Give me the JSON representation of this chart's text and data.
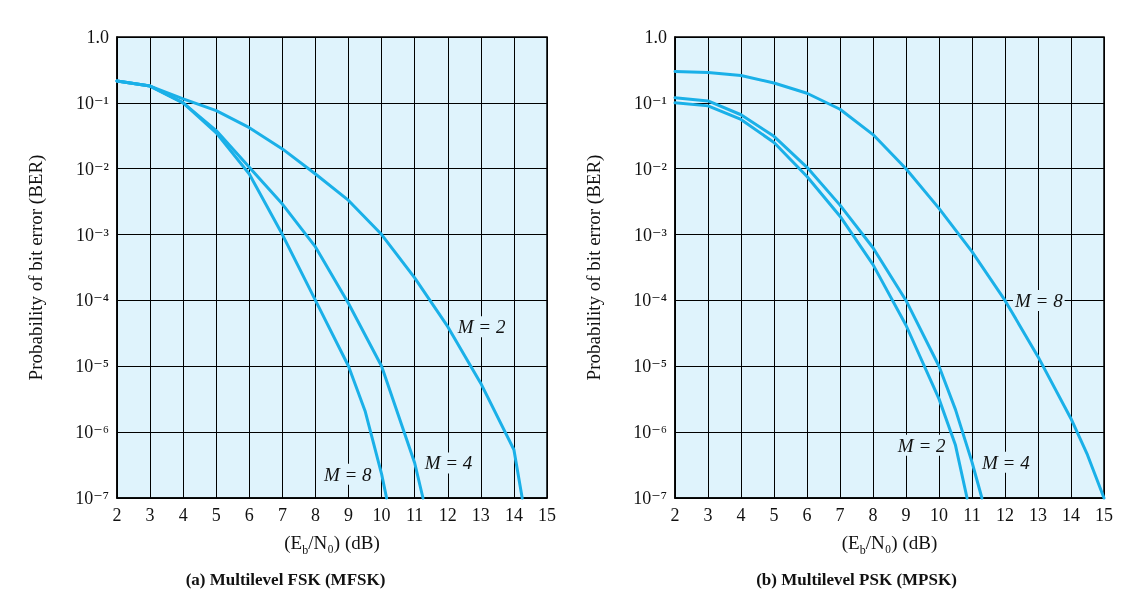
{
  "chart_data": [
    {
      "type": "line",
      "title": "(a) Multilevel FSK (MFSK)",
      "xlabel": "(E$_{b}$/N₀) (dB)",
      "ylabel": "Probability of bit error (BER)",
      "log": "y",
      "grid": true,
      "line_style": "solid",
      "xlim": [
        2,
        15
      ],
      "xticks": [
        2,
        3,
        4,
        5,
        6,
        7,
        8,
        9,
        10,
        11,
        12,
        13,
        14,
        15
      ],
      "ylim": [
        1e-07,
        1.0
      ],
      "yticks": [
        {
          "value": 1e-07,
          "label": "10⁻⁷"
        },
        {
          "value": 1e-06,
          "label": "10⁻⁶"
        },
        {
          "value": 1e-05,
          "label": "10⁻⁵"
        },
        {
          "value": 0.0001,
          "label": "10⁻⁴"
        },
        {
          "value": 0.001,
          "label": "10⁻³"
        },
        {
          "value": 0.01,
          "label": "10⁻²"
        },
        {
          "value": 0.1,
          "label": "10⁻¹"
        },
        {
          "value": 1.0,
          "label": "1.0"
        }
      ],
      "series": [
        {
          "color": "#1ab0e8",
          "x": [
            2,
            3,
            4,
            5,
            6,
            7,
            8,
            9,
            10,
            11,
            12,
            13,
            14,
            14.25
          ],
          "values": [
            0.215,
            0.18,
            0.115,
            0.076,
            0.042,
            0.02,
            0.0083,
            0.0033,
            0.001,
            0.00022,
            4e-05,
            5.5e-06,
            5.4e-07,
            1e-07
          ]
        },
        {
          "color": "#1ab0e8",
          "x": [
            2,
            3,
            4,
            5,
            6,
            7,
            8,
            9,
            10,
            11,
            11.25
          ],
          "values": [
            0.215,
            0.18,
            0.1,
            0.038,
            0.0105,
            0.0029,
            0.00065,
            9e-05,
            1e-05,
            3.4e-07,
            1e-07
          ]
        },
        {
          "color": "#1ab0e8",
          "x": [
            2,
            3,
            4,
            5,
            6,
            7,
            8,
            9,
            9.5,
            10,
            10.15
          ],
          "values": [
            0.215,
            0.18,
            0.1,
            0.035,
            0.0083,
            0.001,
            0.0001,
            1e-05,
            2.1e-06,
            2.3e-07,
            1e-07
          ]
        }
      ],
      "annotations": [
        {
          "text": "M = 2",
          "x": 12,
          "y": 4e-05
        },
        {
          "text": "M = 4",
          "x": 11,
          "y": 3.4e-07
        },
        {
          "text": "M = 8",
          "x": 10,
          "y": 2.3e-07
        }
      ]
    },
    {
      "type": "line",
      "title": "(b) Multilevel PSK (MPSK)",
      "xlabel": "(E$_{b}$/N₀) (dB)",
      "ylabel": "Probability of bit error (BER)",
      "log": "y",
      "grid": true,
      "line_style": "solid",
      "xlim": [
        2,
        15
      ],
      "xticks": [
        2,
        3,
        4,
        5,
        6,
        7,
        8,
        9,
        10,
        11,
        12,
        13,
        14,
        15
      ],
      "ylim": [
        1e-07,
        1.0
      ],
      "yticks": [
        {
          "value": 1e-07,
          "label": "10⁻⁷"
        },
        {
          "value": 1e-06,
          "label": "10⁻⁶"
        },
        {
          "value": 1e-05,
          "label": "10⁻⁵"
        },
        {
          "value": 0.0001,
          "label": "10⁻⁴"
        },
        {
          "value": 0.001,
          "label": "10⁻³"
        },
        {
          "value": 0.01,
          "label": "10⁻²"
        },
        {
          "value": 0.1,
          "label": "10⁻¹"
        },
        {
          "value": 1.0,
          "label": "1.0"
        }
      ],
      "series": [
        {
          "color": "#1ab0e8",
          "x": [
            2,
            3,
            4,
            5,
            6,
            7,
            8,
            9,
            10,
            11,
            12,
            13,
            14,
            14.5,
            15
          ],
          "values": [
            0.3,
            0.29,
            0.26,
            0.2,
            0.14,
            0.08,
            0.033,
            0.01,
            0.0025,
            0.00055,
            0.0001,
            1.4e-05,
            1.6e-06,
            4.5e-07,
            1e-07
          ]
        },
        {
          "color": "#1ab0e8",
          "x": [
            2,
            3,
            4,
            5,
            6,
            7,
            8,
            9,
            10,
            10.5,
            11,
            11.3
          ],
          "values": [
            0.12,
            0.107,
            0.066,
            0.031,
            0.0105,
            0.0028,
            0.00063,
            0.0001,
            1e-05,
            2.2e-06,
            3.5e-07,
            1e-07
          ]
        },
        {
          "color": "#1ab0e8",
          "x": [
            2,
            3,
            4,
            5,
            6,
            7,
            8,
            9,
            10,
            10.5,
            10.85
          ],
          "values": [
            0.1,
            0.09,
            0.056,
            0.025,
            0.0076,
            0.0019,
            0.00035,
            4.2e-05,
            3.2e-06,
            6.3e-07,
            1e-07
          ]
        }
      ],
      "annotations": [
        {
          "text": "M = 8",
          "x": 12,
          "y": 0.0001
        },
        {
          "text": "M = 2",
          "x": 10.5,
          "y": 6.3e-07
        },
        {
          "text": "M = 4",
          "x": 11,
          "y": 3.5e-07
        }
      ]
    }
  ]
}
